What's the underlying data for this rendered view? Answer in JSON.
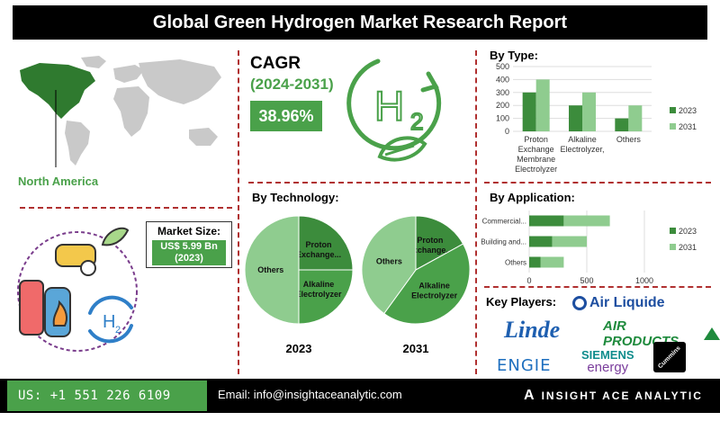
{
  "header": {
    "title": "Global Green Hydrogen Market Research Report"
  },
  "region": {
    "label": "North America"
  },
  "cagr": {
    "title": "CAGR",
    "period": "(2024-2031)",
    "value": "38.96%"
  },
  "market_size": {
    "title": "Market Size:",
    "value": "US$ 5.99 Bn",
    "year": "(2023)"
  },
  "icon_text": {
    "h2": "H",
    "h2_sub": "2"
  },
  "colors": {
    "dark_green": "#3c8c3c",
    "light_green": "#8fcc8f",
    "accent": "#4aa14a",
    "map_grey": "#c9c9c9",
    "map_highlight": "#2f7a2f"
  },
  "chart_data": [
    {
      "id": "by_technology",
      "type": "pie",
      "title": "By Technology:",
      "series": [
        {
          "name": "2023",
          "slices": [
            {
              "label": "Proton Exchange...",
              "value": 25
            },
            {
              "label": "Alkaline Electrolyzer",
              "value": 25
            },
            {
              "label": "Others",
              "value": 50
            }
          ]
        },
        {
          "name": "2031",
          "slices": [
            {
              "label": "Proton Exchange...",
              "value": 17
            },
            {
              "label": "Alkaline Electrolyzer",
              "value": 43
            },
            {
              "label": "Others",
              "value": 40
            }
          ]
        }
      ]
    },
    {
      "id": "by_type",
      "type": "bar",
      "title": "By Type:",
      "categories": [
        "Proton Exchange Membrane Electrolyzer",
        "Alkaline Electrolyzer,",
        "Others"
      ],
      "category_lines": [
        [
          "Proton",
          "Exchange",
          "Membrane",
          "Electrolyzer"
        ],
        [
          "Alkaline",
          "Electrolyzer,"
        ],
        [
          "Others"
        ]
      ],
      "series": [
        {
          "name": "2023",
          "values": [
            300,
            200,
            100
          ]
        },
        {
          "name": "2031",
          "values": [
            400,
            300,
            200
          ]
        }
      ],
      "ylim": [
        0,
        500
      ],
      "yticks": [
        0,
        100,
        200,
        300,
        400,
        500
      ],
      "legend": "right"
    },
    {
      "id": "by_application",
      "type": "bar",
      "orientation": "horizontal",
      "title": "By Application:",
      "categories": [
        "Commercial...",
        "Building and...",
        "Others"
      ],
      "series": [
        {
          "name": "2023",
          "values": [
            300,
            200,
            100
          ]
        },
        {
          "name": "2031",
          "values": [
            400,
            300,
            200
          ]
        }
      ],
      "xlim": [
        0,
        1000
      ],
      "xticks": [
        0,
        500,
        1000
      ],
      "legend": "right"
    }
  ],
  "key_players": {
    "title": "Key Players:",
    "logos": {
      "air_liquide": "Air Liquide",
      "linde": "Linde",
      "air_products": "AIR PRODUCTS",
      "engie": "ENGIE",
      "siemens": "SIEMENS",
      "energy": "energy",
      "cummins": "Cummins"
    }
  },
  "footer": {
    "phone": "US: +1 551 226 6109",
    "email": "Email: info@insightaceanalytic.com",
    "brand": "INSIGHT ACE ANALYTIC",
    "brand_mark": "A"
  }
}
